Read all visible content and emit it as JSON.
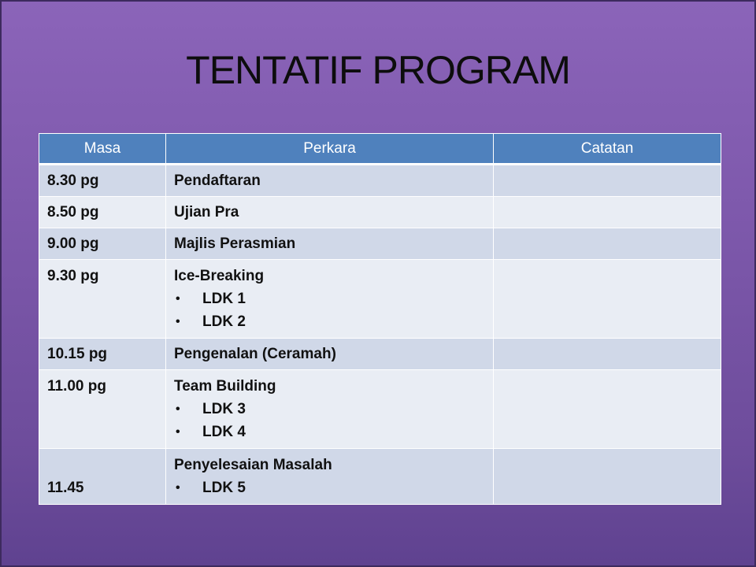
{
  "slide": {
    "title": "TENTATIF PROGRAM"
  },
  "table": {
    "headers": {
      "masa": "Masa",
      "perkara": "Perkara",
      "catatan": "Catatan"
    },
    "rows": [
      {
        "masa": "8.30 pg",
        "perkara": "Pendaftaran",
        "items": [],
        "catatan": ""
      },
      {
        "masa": "8.50 pg",
        "perkara": "Ujian Pra",
        "items": [],
        "catatan": ""
      },
      {
        "masa": "9.00 pg",
        "perkara": "Majlis Perasmian",
        "items": [],
        "catatan": ""
      },
      {
        "masa": "9.30 pg",
        "perkara": "Ice-Breaking",
        "items": [
          "LDK 1",
          "LDK 2"
        ],
        "catatan": ""
      },
      {
        "masa": "10.15 pg",
        "perkara": "Pengenalan (Ceramah)",
        "items": [],
        "catatan": ""
      },
      {
        "masa": "11.00 pg",
        "perkara": "Team Building",
        "items": [
          "LDK 3",
          "LDK 4"
        ],
        "catatan": ""
      },
      {
        "masa": "11.45",
        "perkara": "Penyelesaian Masalah",
        "items": [
          "LDK 5"
        ],
        "catatan": ""
      }
    ],
    "bullet_glyph": "•"
  }
}
